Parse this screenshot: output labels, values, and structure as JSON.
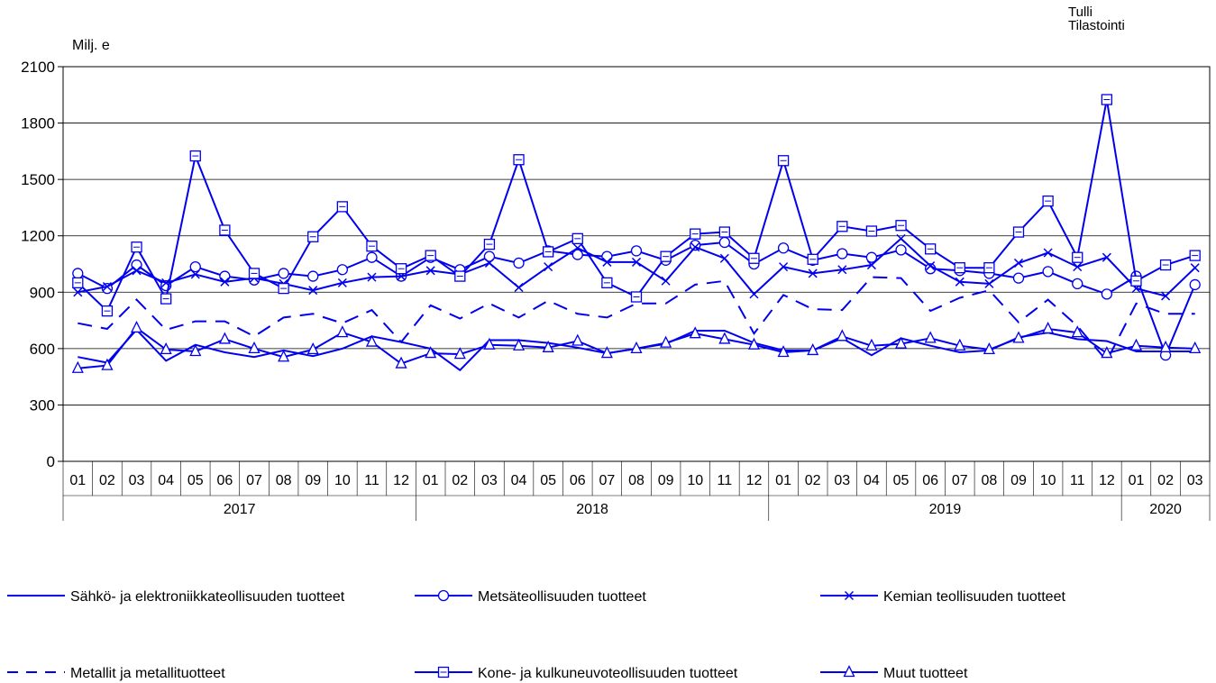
{
  "source": {
    "line1": "Tulli",
    "line2": "Tilastointi"
  },
  "unit_label": "Milj. e",
  "colors": {
    "series": "#0000ee",
    "grid": "#000000",
    "axis": "#000000",
    "background": "#ffffff"
  },
  "chart_data": {
    "type": "line",
    "title": "",
    "xlabel": "",
    "ylabel": "Milj. e",
    "ylim": [
      0,
      2100
    ],
    "yticks": [
      0,
      300,
      600,
      900,
      1200,
      1500,
      1800,
      2100
    ],
    "grid": "horizontal",
    "legend_position": "bottom",
    "months": [
      "01",
      "02",
      "03",
      "04",
      "05",
      "06",
      "07",
      "08",
      "09",
      "10",
      "11",
      "12",
      "01",
      "02",
      "03",
      "04",
      "05",
      "06",
      "07",
      "08",
      "09",
      "10",
      "11",
      "12",
      "01",
      "02",
      "03",
      "04",
      "05",
      "06",
      "07",
      "08",
      "09",
      "10",
      "11",
      "12",
      "01",
      "02",
      "03"
    ],
    "years": [
      {
        "label": "2017",
        "count": 12
      },
      {
        "label": "2018",
        "count": 12
      },
      {
        "label": "2019",
        "count": 12
      },
      {
        "label": "2020",
        "count": 3
      }
    ],
    "series": [
      {
        "name": "Sähkö- ja elektroniikkateollisuuden tuotteet",
        "marker": "none",
        "dash": "solid",
        "values": [
          555,
          525,
          700,
          535,
          620,
          580,
          555,
          590,
          560,
          600,
          665,
          635,
          600,
          485,
          645,
          645,
          630,
          605,
          575,
          600,
          625,
          695,
          695,
          630,
          590,
          590,
          655,
          565,
          655,
          615,
          580,
          590,
          660,
          685,
          650,
          640,
          585,
          585,
          585
        ]
      },
      {
        "name": "Metsäteollisuuden tuotteet",
        "marker": "circle",
        "dash": "solid",
        "values": [
          1000,
          920,
          1045,
          935,
          1035,
          985,
          965,
          1000,
          985,
          1020,
          1085,
          985,
          1085,
          1020,
          1090,
          1055,
          1120,
          1100,
          1090,
          1120,
          1070,
          1150,
          1165,
          1050,
          1135,
          1070,
          1105,
          1085,
          1125,
          1025,
          1015,
          1000,
          975,
          1010,
          945,
          890,
          985,
          565,
          940
        ]
      },
      {
        "name": "Kemian teollisuuden tuotteet",
        "marker": "x",
        "dash": "solid",
        "values": [
          900,
          930,
          1015,
          950,
          995,
          955,
          975,
          945,
          910,
          950,
          980,
          985,
          1015,
          995,
          1055,
          925,
          1035,
          1135,
          1060,
          1060,
          960,
          1140,
          1080,
          890,
          1035,
          1000,
          1020,
          1045,
          1185,
          1040,
          955,
          945,
          1055,
          1110,
          1035,
          1085,
          920,
          880,
          1030
        ]
      },
      {
        "name": "Metallit ja metallituotteet",
        "marker": "none",
        "dash": "dashed",
        "values": [
          735,
          705,
          860,
          700,
          745,
          745,
          665,
          765,
          785,
          735,
          805,
          635,
          830,
          760,
          840,
          765,
          855,
          785,
          765,
          840,
          840,
          940,
          960,
          680,
          885,
          810,
          805,
          980,
          975,
          800,
          870,
          910,
          740,
          860,
          720,
          535,
          840,
          785,
          785
        ]
      },
      {
        "name": "Kone- ja kulkuneuvoteollisuuden tuotteet",
        "marker": "square",
        "dash": "solid",
        "values": [
          950,
          800,
          1140,
          865,
          1625,
          1230,
          1000,
          920,
          1195,
          1355,
          1145,
          1025,
          1095,
          985,
          1155,
          1605,
          1115,
          1185,
          950,
          875,
          1090,
          1210,
          1220,
          1080,
          1600,
          1075,
          1250,
          1225,
          1255,
          1130,
          1030,
          1030,
          1220,
          1385,
          1085,
          1925,
          960,
          1045,
          1095
        ]
      },
      {
        "name": "Muut tuotteet",
        "marker": "triangle",
        "dash": "solid",
        "values": [
          495,
          510,
          710,
          595,
          585,
          650,
          600,
          555,
          595,
          685,
          635,
          520,
          575,
          570,
          620,
          615,
          605,
          640,
          575,
          600,
          630,
          680,
          650,
          620,
          580,
          590,
          665,
          615,
          625,
          655,
          615,
          595,
          655,
          705,
          685,
          575,
          615,
          605,
          600
        ]
      }
    ]
  }
}
